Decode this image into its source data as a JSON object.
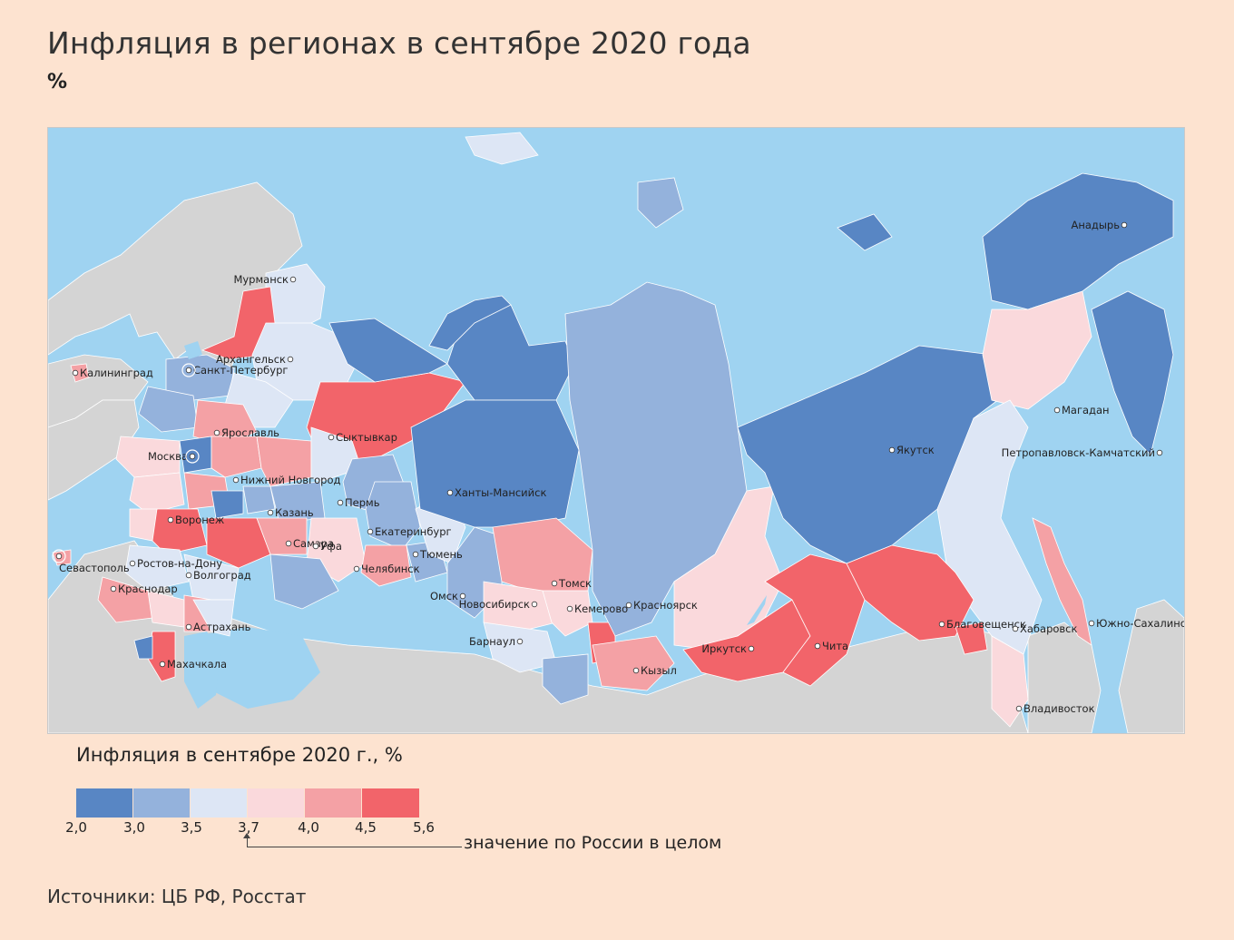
{
  "header": {
    "title": "Инфляция в регионах в сентябре 2020 года",
    "unit": "%"
  },
  "map": {
    "colors": {
      "sea": "#9fd3f1",
      "foreign_land": "#d4d4d4",
      "bin_1": "#5886c4",
      "bin_2": "#94b2dc",
      "bin_3": "#dde6f5",
      "bin_4": "#fad9dc",
      "bin_5": "#f4a1a5",
      "bin_6": "#f2646a"
    },
    "cities": [
      {
        "name": "Мурманск"
      },
      {
        "name": "Архангельск"
      },
      {
        "name": "Калининград"
      },
      {
        "name": "Санкт-Петербург"
      },
      {
        "name": "Ярославль"
      },
      {
        "name": "Сыктывкар"
      },
      {
        "name": "Москва"
      },
      {
        "name": "Нижний Новгород"
      },
      {
        "name": "Пермь"
      },
      {
        "name": "Казань"
      },
      {
        "name": "Ханты-Мансийск"
      },
      {
        "name": "Воронеж"
      },
      {
        "name": "Екатеринбург"
      },
      {
        "name": "Самара"
      },
      {
        "name": "Уфа"
      },
      {
        "name": "Тюмень"
      },
      {
        "name": "Севастополь"
      },
      {
        "name": "Ростов-на-Дону"
      },
      {
        "name": "Волгоград"
      },
      {
        "name": "Челябинск"
      },
      {
        "name": "Краснодар"
      },
      {
        "name": "Омск"
      },
      {
        "name": "Томск"
      },
      {
        "name": "Новосибирск"
      },
      {
        "name": "Кемерово"
      },
      {
        "name": "Красноярск"
      },
      {
        "name": "Астрахань"
      },
      {
        "name": "Барнаул"
      },
      {
        "name": "Махачкала"
      },
      {
        "name": "Кызыл"
      },
      {
        "name": "Иркутск"
      },
      {
        "name": "Чита"
      },
      {
        "name": "Якутск"
      },
      {
        "name": "Анадырь"
      },
      {
        "name": "Магадан"
      },
      {
        "name": "Петропавловск-Камчатский"
      },
      {
        "name": "Благовещенск"
      },
      {
        "name": "Хабаровск"
      },
      {
        "name": "Южно-Сахалинск"
      },
      {
        "name": "Владивосток"
      }
    ]
  },
  "legend": {
    "title": "Инфляция в сентябре 2020 г., %",
    "ticks": [
      "2,0",
      "3,0",
      "3,5",
      "3,7",
      "4,0",
      "4,5",
      "5,6"
    ],
    "bins": [
      {
        "from": 2.0,
        "to": 3.0,
        "color": "#5886c4"
      },
      {
        "from": 3.0,
        "to": 3.5,
        "color": "#94b2dc"
      },
      {
        "from": 3.5,
        "to": 3.7,
        "color": "#dde6f5"
      },
      {
        "from": 3.7,
        "to": 4.0,
        "color": "#fad9dc"
      },
      {
        "from": 4.0,
        "to": 4.5,
        "color": "#f4a1a5"
      },
      {
        "from": 4.5,
        "to": 5.6,
        "color": "#f2646a"
      }
    ],
    "russia_value": 3.7,
    "russia_note": "значение по России в целом"
  },
  "footer": {
    "sources": "Источники: ЦБ РФ, Росстат"
  }
}
